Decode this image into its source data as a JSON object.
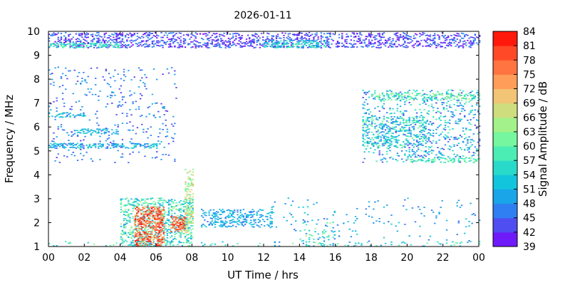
{
  "chart_data": {
    "type": "heatmap",
    "title": "2026-01-11",
    "xlabel": "UT Time / hrs",
    "ylabel": "Frequency / MHz",
    "colorbar_label": "Signal Amplitude / dB",
    "xlim": [
      0,
      24
    ],
    "ylim": [
      1,
      10
    ],
    "clim": [
      39,
      84
    ],
    "x_ticks": [
      "00",
      "02",
      "04",
      "06",
      "08",
      "10",
      "12",
      "14",
      "16",
      "18",
      "20",
      "22",
      "00"
    ],
    "x_tick_values": [
      0,
      2,
      4,
      6,
      8,
      10,
      12,
      14,
      16,
      18,
      20,
      22,
      24
    ],
    "y_ticks": [
      "1",
      "2",
      "3",
      "4",
      "5",
      "6",
      "7",
      "8",
      "9",
      "10"
    ],
    "y_tick_values": [
      1,
      2,
      3,
      4,
      5,
      6,
      7,
      8,
      9,
      10
    ],
    "colorbar_ticks": [
      "39",
      "42",
      "45",
      "48",
      "51",
      "54",
      "57",
      "60",
      "63",
      "66",
      "69",
      "72",
      "75",
      "78",
      "81",
      "84"
    ],
    "colorbar_tick_values": [
      39,
      42,
      45,
      48,
      51,
      54,
      57,
      60,
      63,
      66,
      69,
      72,
      75,
      78,
      81,
      84
    ],
    "colormap": [
      "#7f00ff",
      "#5a3cf0",
      "#3478f4",
      "#1aa4e8",
      "#12c8dc",
      "#30e0c4",
      "#5cf4ac",
      "#90f890",
      "#c4e480",
      "#f0c878",
      "#ff9c58",
      "#ff6c3c",
      "#ff3a1e",
      "#ff0000"
    ],
    "grid": false,
    "regions": [
      {
        "t0": 0,
        "t1": 24,
        "f0": 9.3,
        "f1": 9.9,
        "amp": [
          39,
          48
        ],
        "density": 0.35
      },
      {
        "t0": 0,
        "t1": 4,
        "f0": 9.3,
        "f1": 9.5,
        "amp": [
          54,
          60
        ],
        "density": 0.5
      },
      {
        "t0": 12,
        "t1": 15.5,
        "f0": 9.3,
        "f1": 9.6,
        "amp": [
          48,
          60
        ],
        "density": 0.5
      },
      {
        "t0": 0,
        "t1": 7.2,
        "f0": 4.5,
        "f1": 8.5,
        "amp": [
          42,
          51
        ],
        "density": 0.05
      },
      {
        "t0": 0,
        "t1": 6,
        "f0": 5.1,
        "f1": 5.3,
        "amp": [
          45,
          57
        ],
        "density": 0.5
      },
      {
        "t0": 1.5,
        "t1": 4,
        "f0": 5.7,
        "f1": 5.9,
        "amp": [
          48,
          57
        ],
        "density": 0.45
      },
      {
        "t0": 0,
        "t1": 2,
        "f0": 6.4,
        "f1": 6.6,
        "amp": [
          45,
          57
        ],
        "density": 0.35
      },
      {
        "t0": 17.5,
        "t1": 24,
        "f0": 4.5,
        "f1": 7.5,
        "amp": [
          42,
          60
        ],
        "density": 0.16
      },
      {
        "t0": 17.5,
        "t1": 21,
        "f0": 5.1,
        "f1": 6.4,
        "amp": [
          45,
          63
        ],
        "density": 0.25
      },
      {
        "t0": 18,
        "t1": 24,
        "f0": 7.1,
        "f1": 7.4,
        "amp": [
          54,
          66
        ],
        "density": 0.3
      },
      {
        "t0": 20,
        "t1": 24,
        "f0": 4.5,
        "f1": 4.7,
        "amp": [
          54,
          63
        ],
        "density": 0.35
      },
      {
        "t0": 8.5,
        "t1": 12.5,
        "f0": 1.8,
        "f1": 2.5,
        "amp": [
          45,
          54
        ],
        "density": 0.35
      },
      {
        "t0": 4,
        "t1": 8,
        "f0": 1,
        "f1": 3,
        "amp": [
          48,
          66
        ],
        "density": 0.35
      },
      {
        "t0": 4.8,
        "t1": 6.4,
        "f0": 1,
        "f1": 2.6,
        "amp": [
          72,
          84
        ],
        "density": 0.5
      },
      {
        "t0": 6.8,
        "t1": 7.6,
        "f0": 1.6,
        "f1": 2.2,
        "amp": [
          72,
          84
        ],
        "density": 0.5
      },
      {
        "t0": 7.6,
        "t1": 8.1,
        "f0": 1.5,
        "f1": 4.2,
        "amp": [
          60,
          72
        ],
        "density": 0.35
      },
      {
        "t0": 14,
        "t1": 16,
        "f0": 1,
        "f1": 2,
        "amp": [
          51,
          66
        ],
        "density": 0.12
      },
      {
        "t0": 0,
        "t1": 24,
        "f0": 1,
        "f1": 1.2,
        "amp": [
          51,
          63
        ],
        "density": 0.08
      },
      {
        "t0": 12,
        "t1": 24,
        "f0": 1,
        "f1": 3,
        "amp": [
          45,
          54
        ],
        "density": 0.03
      }
    ]
  }
}
